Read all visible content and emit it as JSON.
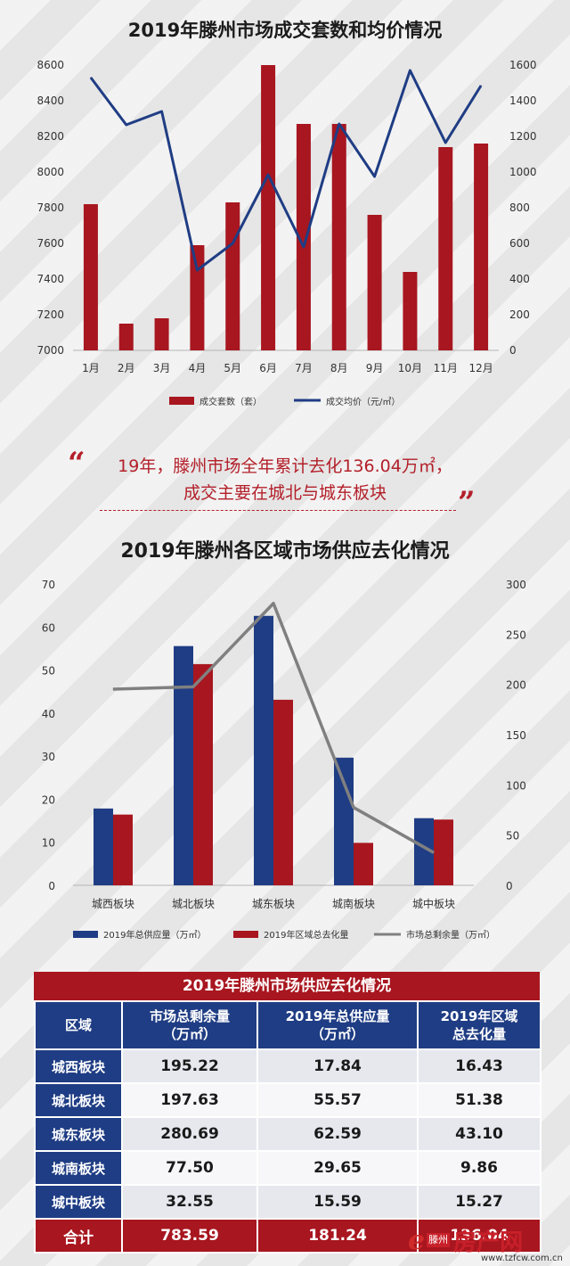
{
  "chart1": {
    "title": "2019年滕州市场成交套数和均价情况",
    "chart_data": {
      "type": "bar",
      "categories": [
        "1月",
        "2月",
        "3月",
        "4月",
        "5月",
        "6月",
        "7月",
        "8月",
        "9月",
        "10月",
        "11月",
        "12月"
      ],
      "series": [
        {
          "name": "成交套数（套）",
          "type": "bar",
          "axis": "right",
          "color": "#a8161f",
          "values": [
            820,
            150,
            180,
            590,
            830,
            1600,
            1270,
            1270,
            760,
            440,
            1140,
            1160
          ]
        },
        {
          "name": "成交均价（元/㎡）",
          "type": "line",
          "axis": "left",
          "color": "#1f3d84",
          "values": [
            8530,
            8265,
            8340,
            7450,
            7600,
            7985,
            7580,
            8270,
            7975,
            8570,
            8165,
            8485
          ]
        }
      ],
      "y_left": {
        "min": 7000,
        "max": 8600,
        "ticks": [
          7000,
          7200,
          7400,
          7600,
          7800,
          8000,
          8200,
          8400,
          8600
        ]
      },
      "y_right": {
        "min": 0,
        "max": 1600,
        "ticks": [
          0,
          200,
          400,
          600,
          800,
          1000,
          1200,
          1400,
          1600
        ]
      },
      "legend": "bottom"
    }
  },
  "quote": {
    "line1": "19年，滕州市场全年累计去化136.04万㎡，",
    "line2": "成交主要在城北与城东板块"
  },
  "chart2": {
    "title": "2019年滕州各区域市场供应去化情况",
    "chart_data": {
      "type": "bar",
      "categories": [
        "城西板块",
        "城北板块",
        "城东板块",
        "城南板块",
        "城中板块"
      ],
      "series": [
        {
          "name": "2019年总供应量（万㎡）",
          "type": "bar",
          "axis": "left",
          "color": "#1f3d84",
          "values": [
            17.84,
            55.57,
            62.59,
            29.65,
            15.59
          ]
        },
        {
          "name": "2019年区域总去化量",
          "type": "bar",
          "axis": "left",
          "color": "#a8161f",
          "values": [
            16.43,
            51.38,
            43.1,
            9.86,
            15.27
          ]
        },
        {
          "name": "市场总剩余量（万㎡）",
          "type": "line",
          "axis": "right",
          "color": "#808080",
          "values": [
            195.22,
            197.63,
            280.69,
            77.5,
            32.55
          ]
        }
      ],
      "y_left": {
        "min": 0,
        "max": 70,
        "ticks": [
          0,
          10,
          20,
          30,
          40,
          50,
          60,
          70
        ]
      },
      "y_right": {
        "min": 0,
        "max": 300,
        "ticks": [
          0,
          50,
          100,
          150,
          200,
          250,
          300
        ]
      },
      "legend": "bottom"
    }
  },
  "table": {
    "title": "2019年滕州市场供应去化情况",
    "headers": [
      "区域",
      "市场总剩余量\n（万㎡）",
      "2019年总供应量\n（万㎡）",
      "2019年区域\n总去化量"
    ],
    "rows": [
      [
        "城西板块",
        "195.22",
        "17.84",
        "16.43"
      ],
      [
        "城北板块",
        "197.63",
        "55.57",
        "51.38"
      ],
      [
        "城东板块",
        "280.69",
        "62.59",
        "43.10"
      ],
      [
        "城南板块",
        "77.50",
        "29.65",
        "9.86"
      ],
      [
        "城中板块",
        "32.55",
        "15.59",
        "15.27"
      ]
    ],
    "total": [
      "合计",
      "783.59",
      "181.24",
      "136.04"
    ]
  },
  "logo": {
    "mark": "e",
    "city": "滕州",
    "name": "房产网",
    "url": "www.tzfcw.com.cn"
  }
}
